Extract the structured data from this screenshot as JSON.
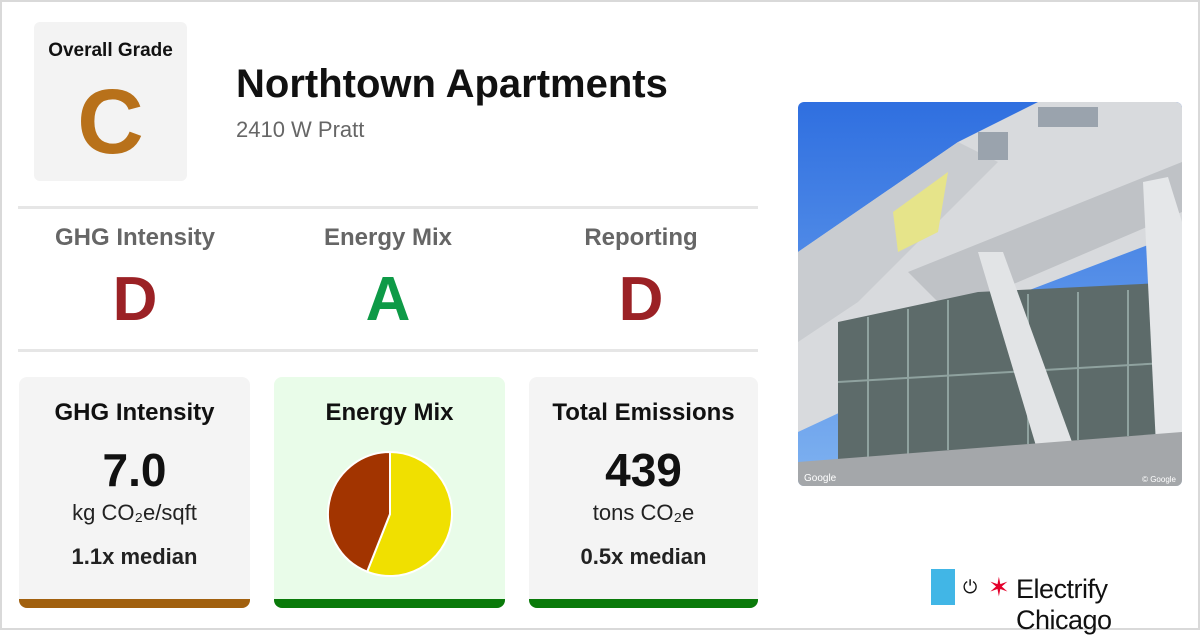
{
  "overall": {
    "label": "Overall Grade",
    "grade": "C",
    "color": "#b8711a"
  },
  "building": {
    "name": "Northtown Apartments",
    "address": "2410 W Pratt"
  },
  "grades": [
    {
      "label": "GHG Intensity",
      "grade": "D",
      "color": "#9b2125"
    },
    {
      "label": "Energy Mix",
      "grade": "A",
      "color": "#0e9a47"
    },
    {
      "label": "Reporting",
      "grade": "D",
      "color": "#9b2125"
    }
  ],
  "cards": {
    "ghg": {
      "title": "GHG Intensity",
      "value": "7.0",
      "unit": "kg CO₂e/sqft",
      "median": "1.1x median",
      "bar_color": "#a1600e"
    },
    "mix": {
      "title": "Energy Mix",
      "bar_color": "#0a7a0a",
      "background": "#e9fce9"
    },
    "emissions": {
      "title": "Total Emissions",
      "value": "439",
      "unit": "tons CO₂e",
      "median": "0.5x median",
      "bar_color": "#0a7a0a"
    }
  },
  "chart_data": {
    "type": "pie",
    "slices": [
      {
        "value": 56,
        "color": "#f0e000"
      },
      {
        "value": 44,
        "color": "#a23400"
      }
    ]
  },
  "photo": {
    "attribution_left": "Google",
    "attribution_right": "© Google"
  },
  "brand": {
    "name": "Electrify Chicago",
    "flag_color": "#41b6e6",
    "star_color": "#e4002b"
  },
  "icons": {
    "plug": "plug-icon",
    "star": "chicago-star-icon"
  }
}
